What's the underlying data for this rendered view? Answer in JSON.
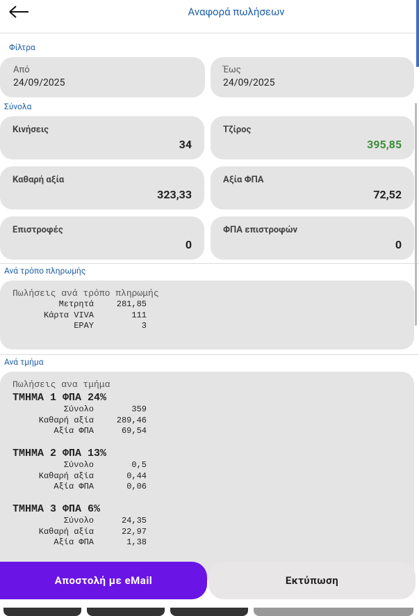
{
  "header": {
    "title": "Αναφορά πωλήσεων"
  },
  "filters": {
    "section": "Φίλτρα",
    "from": {
      "label": "Από",
      "value": "24/09/2025"
    },
    "to": {
      "label": "Έως",
      "value": "24/09/2025"
    }
  },
  "totals": {
    "section": "Σύνολα",
    "cards": [
      {
        "label": "Κινήσεις",
        "value": "34"
      },
      {
        "label": "Τζίρος",
        "value": "395,85",
        "color": "#3b8e3b"
      },
      {
        "label": "Καθαρή αξία",
        "value": "323,33"
      },
      {
        "label": "Αξία ΦΠΑ",
        "value": "72,52"
      },
      {
        "label": "Επιστροφές",
        "value": "0"
      },
      {
        "label": "ΦΠΑ επιστροφών",
        "value": "0"
      }
    ]
  },
  "payment": {
    "section": "Ανά τρόπο πληρωμής",
    "title": "Πωλήσεις ανά τρόπο πληρωμής",
    "rows": [
      [
        "Μετρητά",
        "281,85"
      ],
      [
        "Κάρτα VIVA",
        "111"
      ],
      [
        "EPAY",
        "3"
      ]
    ]
  },
  "departments": {
    "section": "Ανά τμήμα",
    "title": "Πωλήσεις ανα τμήμα",
    "groups": [
      {
        "heading": "ΤΜΗΜΑ 1 ΦΠΑ 24%",
        "rows": [
          [
            "Σύνολο",
            "359"
          ],
          [
            "Καθαρή αξία",
            "289,46"
          ],
          [
            "Αξία ΦΠΑ",
            "69,54"
          ]
        ]
      },
      {
        "heading": "ΤΜΗΜΑ 2 ΦΠΑ 13%",
        "rows": [
          [
            "Σύνολο",
            "0,5"
          ],
          [
            "Καθαρή αξία",
            "0,44"
          ],
          [
            "Αξία ΦΠΑ",
            "0,06"
          ]
        ]
      },
      {
        "heading": "ΤΜΗΜΑ 3 ΦΠΑ 6%",
        "rows": [
          [
            "Σύνολο",
            "24,35"
          ],
          [
            "Καθαρή αξία",
            "22,97"
          ],
          [
            "Αξία ΦΠΑ",
            "1,38"
          ]
        ]
      }
    ]
  },
  "buttons": {
    "email": "Αποστολή με eMail",
    "print": "Εκτύπωση"
  }
}
